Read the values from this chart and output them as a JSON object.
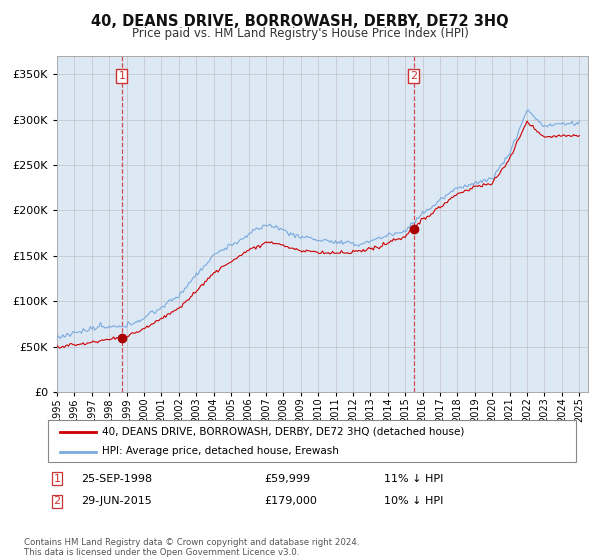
{
  "title": "40, DEANS DRIVE, BORROWASH, DERBY, DE72 3HQ",
  "subtitle": "Price paid vs. HM Land Registry's House Price Index (HPI)",
  "ylim": [
    0,
    370000
  ],
  "xlim_start": 1995.0,
  "xlim_end": 2025.5,
  "sale1_date": 1998.73,
  "sale1_price": 59999,
  "sale2_date": 2015.49,
  "sale2_price": 179000,
  "sale1_label": "1",
  "sale2_label": "2",
  "legend_line1": "40, DEANS DRIVE, BORROWASH, DERBY, DE72 3HQ (detached house)",
  "legend_line2": "HPI: Average price, detached house, Erewash",
  "footer": "Contains HM Land Registry data © Crown copyright and database right 2024.\nThis data is licensed under the Open Government Licence v3.0.",
  "hpi_color": "#7aaadd",
  "price_color": "#cc0000",
  "sale_marker_color": "#aa0000",
  "vline_color": "#cc3333",
  "grid_color": "#bbbbbb",
  "background_color": "#ffffff",
  "plot_bg_color": "#dde8f5",
  "title_fontsize": 10.5,
  "subtitle_fontsize": 8.5
}
